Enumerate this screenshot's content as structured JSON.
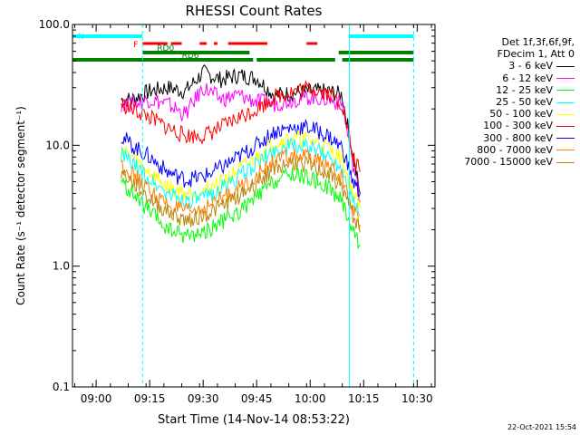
{
  "header": {
    "title": "RHESSI Count Rates",
    "timestamp": "22-Oct-2021 15:54"
  },
  "legend": {
    "line1": "Det 1f,3f,6f,9f,",
    "line2": "FDecim 1, Att 0",
    "entries": [
      {
        "label": "3 - 6 keV",
        "color": "#000000"
      },
      {
        "label": "6 - 12 keV",
        "color": "#ff00ff"
      },
      {
        "label": "12 - 25 keV",
        "color": "#00ff00"
      },
      {
        "label": "25 - 50 keV",
        "color": "#00ffff"
      },
      {
        "label": "50 - 100 keV",
        "color": "#ffff00"
      },
      {
        "label": "100 - 300 keV",
        "color": "#ff0000"
      },
      {
        "label": "300 - 800 keV",
        "color": "#0000ff"
      },
      {
        "label": "800 - 7000 keV",
        "color": "#ff8000"
      },
      {
        "label": "7000 - 15000 keV",
        "color": "#b8860b"
      }
    ]
  },
  "chart_data": {
    "type": "line",
    "title": "RHESSI Count Rates",
    "xlabel": "Start Time (14-Nov-14 08:53:22)",
    "ylabel": "Count Rate (s⁻¹ detector segment⁻¹)",
    "yscale": "log",
    "ylim": [
      0.1,
      100
    ],
    "xlim": [
      "08:53:22",
      "10:35"
    ],
    "x_ticks": [
      "09:00",
      "09:15",
      "09:30",
      "09:45",
      "10:00",
      "10:15",
      "10:30"
    ],
    "y_ticks": [
      "0.1",
      "1.0",
      "10.0",
      "100.0"
    ],
    "grid": false,
    "legend_position": "right",
    "x_times": [
      "09:07",
      "09:10",
      "09:15",
      "09:20",
      "09:25",
      "09:30",
      "09:35",
      "09:40",
      "09:45",
      "09:50",
      "09:55",
      "10:00",
      "10:05",
      "10:09",
      "10:12",
      "10:14"
    ],
    "series": [
      {
        "name": "3 - 6 keV",
        "color": "#000000",
        "values": [
          24,
          24,
          28,
          30,
          28,
          40,
          35,
          38,
          36,
          26,
          27,
          28,
          28,
          26,
          8,
          4
        ]
      },
      {
        "name": "6 - 12 keV",
        "color": "#ff00ff",
        "values": [
          22,
          22,
          24,
          22,
          18,
          30,
          24,
          26,
          23,
          22,
          24,
          25,
          24,
          22,
          7,
          3.5
        ]
      },
      {
        "name": "100 - 300 keV",
        "color": "#ff0000",
        "values": [
          22,
          20,
          17,
          14,
          12,
          12,
          14,
          17,
          20,
          25,
          28,
          30,
          27,
          22,
          8,
          6
        ]
      },
      {
        "name": "300 - 800 keV",
        "color": "#0000ff",
        "values": [
          12,
          10,
          8,
          6,
          5.2,
          5.5,
          6.5,
          8,
          10,
          13,
          14,
          14,
          12,
          9.5,
          5,
          4
        ]
      },
      {
        "name": "50 - 100 keV",
        "color": "#ffff00",
        "values": [
          9.5,
          8,
          6,
          4.5,
          4,
          4.2,
          5,
          6.2,
          8,
          10.5,
          11.5,
          11,
          9.5,
          7.5,
          4,
          3
        ]
      },
      {
        "name": "25 - 50 keV",
        "color": "#00ffff",
        "values": [
          8.5,
          7,
          5.2,
          4,
          3.5,
          3.6,
          4.4,
          5.5,
          7,
          9,
          10,
          9.5,
          8.2,
          6.5,
          3.5,
          2.6
        ]
      },
      {
        "name": "800 - 7000 keV",
        "color": "#ff8000",
        "values": [
          7,
          5.8,
          4.2,
          3.2,
          2.8,
          3,
          3.6,
          4.4,
          5.6,
          7.4,
          8.2,
          7.8,
          6.8,
          5.2,
          3,
          2.2
        ]
      },
      {
        "name": "7000 - 15000 keV",
        "color": "#b8860b",
        "values": [
          6,
          5,
          3.6,
          2.8,
          2.4,
          2.6,
          3.1,
          3.8,
          4.9,
          6.5,
          7.2,
          6.8,
          5.8,
          4.5,
          2.6,
          1.9
        ]
      },
      {
        "name": "12 - 25 keV",
        "color": "#00ff00",
        "values": [
          5,
          4,
          2.8,
          2,
          1.8,
          1.9,
          2.3,
          2.8,
          3.7,
          5,
          5.8,
          5.3,
          4.5,
          3.4,
          2,
          1.5
        ]
      }
    ],
    "flags": [
      {
        "label": "N",
        "color": "#00ffff",
        "intervals": [
          [
            "08:53:22",
            "09:13"
          ],
          [
            "10:11",
            "10:29"
          ]
        ]
      },
      {
        "label": "F",
        "color": "#ff0000",
        "intervals": [
          [
            "09:13",
            "09:20"
          ],
          [
            "09:21",
            "09:24"
          ],
          [
            "09:29",
            "09:31"
          ],
          [
            "09:33",
            "09:34"
          ],
          [
            "09:37",
            "09:48"
          ],
          [
            "09:59",
            "10:02"
          ]
        ]
      },
      {
        "label": "RD0",
        "color": "#008000",
        "intervals": [
          [
            "09:13",
            "09:23"
          ],
          [
            "09:23",
            "09:43"
          ],
          [
            "10:08",
            "10:29"
          ]
        ]
      },
      {
        "label": "RD6",
        "color": "#008000",
        "intervals": [
          [
            "08:53:22",
            "09:23"
          ],
          [
            "09:23",
            "09:44"
          ],
          [
            "09:45",
            "10:07"
          ],
          [
            "10:09",
            "10:29"
          ]
        ]
      }
    ],
    "markers": [
      {
        "time": "09:13",
        "style": "dashed",
        "color": "#00ffff"
      },
      {
        "time": "10:11",
        "style": "solid",
        "color": "#00ffff"
      },
      {
        "time": "10:29",
        "style": "dashed",
        "color": "#00ffff"
      }
    ]
  }
}
